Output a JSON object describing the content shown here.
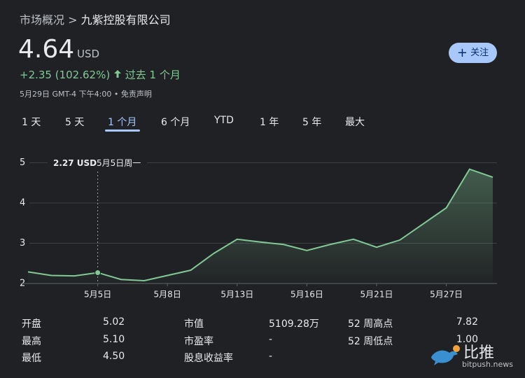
{
  "breadcrumb": [
    "市场概况",
    ">",
    "九紫控股有限公司"
  ],
  "quote": {
    "price": "4.64",
    "currency": "USD",
    "change": "+2.35 (102.62%)",
    "period": "过去 1 个月",
    "timestamp": "5月29日 GMT-4 下午4:00 • 免责声明"
  },
  "follow_button": "关注",
  "tabs": {
    "items": [
      "1 天",
      "5 天",
      "1 个月",
      "6 个月",
      "YTD",
      "1 年",
      "5 年",
      "最大"
    ],
    "active": 2
  },
  "chart_data": {
    "type": "area",
    "categories": [
      null,
      null,
      null,
      "5月5日",
      null,
      null,
      "5月8日",
      null,
      null,
      "5月13日",
      null,
      null,
      "5月16日",
      null,
      null,
      "5月21日",
      null,
      null,
      "5月27日",
      null,
      null
    ],
    "values": [
      2.29,
      2.2,
      2.19,
      2.27,
      2.1,
      2.07,
      2.2,
      2.33,
      2.75,
      3.1,
      3.03,
      2.97,
      2.82,
      2.97,
      3.1,
      2.9,
      3.08,
      3.48,
      3.88,
      4.84,
      4.64
    ],
    "color": "#81c995",
    "ylim": [
      2,
      5.4
    ],
    "yticks": [
      2,
      3,
      4,
      5
    ],
    "grid": true,
    "tooltip": {
      "index": 3,
      "value_label": "2.27 USD",
      "date_label": "5月5日周一"
    }
  },
  "stats": {
    "rows": [
      [
        [
          "开盘",
          "5.02"
        ],
        [
          "市值",
          "5109.28万"
        ],
        [
          "52 周高点",
          "7.82"
        ]
      ],
      [
        [
          "最高",
          "5.10"
        ],
        [
          "市盈率",
          "-"
        ],
        [
          "52 周低点",
          "1.00"
        ]
      ],
      [
        [
          "最低",
          "4.50"
        ],
        [
          "股息收益率",
          "-"
        ]
      ]
    ]
  },
  "watermark": {
    "name": "比推",
    "site": "bitpush.news"
  }
}
